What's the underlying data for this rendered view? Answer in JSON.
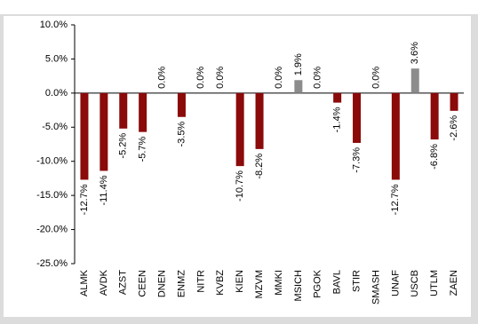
{
  "chart_data": {
    "type": "bar",
    "categories": [
      "ALMK",
      "AVDK",
      "AZST",
      "CEEN",
      "DNEN",
      "ENMZ",
      "NITR",
      "KVBZ",
      "KIEN",
      "MZVM",
      "MMKI",
      "MSICH",
      "PGOK",
      "BAVL",
      "STIR",
      "SMASH",
      "UNAF",
      "USCB",
      "UTLM",
      "ZAEN"
    ],
    "values": [
      -12.7,
      -11.4,
      -5.2,
      -5.7,
      0,
      -3.5,
      0,
      0,
      -10.7,
      -8.2,
      0,
      1.9,
      0,
      -1.4,
      -7.3,
      0,
      -12.7,
      3.6,
      -6.8,
      -2.6
    ],
    "value_labels": [
      "-12.7%",
      "-11.4%",
      "-5.2%",
      "-5.7%",
      "0.0%",
      "-3.5%",
      "0.0%",
      "0.0%",
      "-10.7%",
      "-8.2%",
      "0.0%",
      "1.9%",
      "0.0%",
      "-1.4%",
      "-7.3%",
      "0.0%",
      "-12.7%",
      "3.6%",
      "-6.8%",
      "-2.6%"
    ],
    "colors": [
      "#8b0a0a",
      "#8b0a0a",
      "#8b0a0a",
      "#8b0a0a",
      "#8b0a0a",
      "#8b0a0a",
      "#8b0a0a",
      "#8b0a0a",
      "#8b0a0a",
      "#8b0a0a",
      "#8b0a0a",
      "#8c8c8c",
      "#8b0a0a",
      "#8b0a0a",
      "#8b0a0a",
      "#8b0a0a",
      "#8b0a0a",
      "#8c8c8c",
      "#8b0a0a",
      "#8b0a0a"
    ],
    "ylim": [
      -25,
      10
    ],
    "yticks": [
      {
        "value": 10,
        "label": "10.0%"
      },
      {
        "value": 5,
        "label": "5.0%"
      },
      {
        "value": 0,
        "label": "0.0%"
      },
      {
        "value": -5,
        "label": "-5.0%"
      },
      {
        "value": -10,
        "label": "-10.0%"
      },
      {
        "value": -15,
        "label": "-15.0%"
      },
      {
        "value": -20,
        "label": "-20.0%"
      },
      {
        "value": -25,
        "label": "-25.0%"
      }
    ],
    "grid": false
  }
}
